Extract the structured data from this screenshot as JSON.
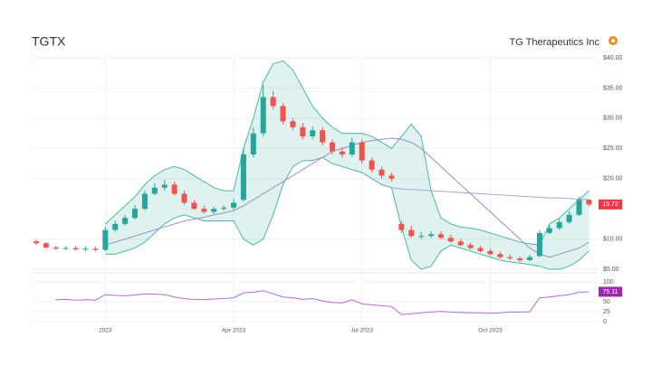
{
  "chart_data": [
    {
      "type": "candlestick",
      "title": "TGTX",
      "subtitle": "TG Therapeutics Inc",
      "categories": [
        null,
        null,
        null,
        null,
        null,
        null,
        null,
        "2023",
        null,
        null,
        null,
        null,
        null,
        null,
        null,
        null,
        null,
        null,
        null,
        null,
        "Apr 2023",
        null,
        null,
        null,
        null,
        null,
        null,
        null,
        null,
        null,
        null,
        null,
        null,
        "Jul 2023",
        null,
        null,
        null,
        null,
        null,
        null,
        null,
        null,
        null,
        null,
        null,
        null,
        "Oct 2023",
        null,
        null,
        null,
        null,
        null,
        null,
        null,
        null,
        null,
        null
      ],
      "open": [
        9.6,
        9.3,
        8.6,
        8.4,
        8.5,
        8.3,
        8.4,
        8.2,
        11.5,
        12.5,
        13.5,
        15.0,
        17.5,
        18.5,
        19.0,
        17.5,
        16.0,
        15.0,
        14.5,
        15.0,
        15.2,
        16.5,
        24.0,
        27.5,
        33.5,
        32.0,
        29.5,
        28.5,
        27.0,
        28.0,
        26.0,
        24.5,
        24.0,
        26.0,
        23.0,
        21.5,
        20.5,
        12.5,
        11.5,
        10.5,
        10.5,
        10.8,
        10.2,
        9.6,
        9.0,
        8.5,
        8.0,
        7.5,
        7.0,
        6.8,
        6.5,
        7.2,
        11.0,
        11.8,
        12.8,
        14.0,
        16.5
      ],
      "high": [
        9.9,
        9.5,
        8.9,
        8.8,
        8.9,
        8.7,
        8.8,
        12.0,
        13.0,
        14.0,
        15.6,
        18.0,
        19.2,
        19.8,
        19.5,
        18.0,
        16.5,
        15.5,
        15.3,
        15.6,
        16.6,
        25.0,
        28.5,
        35.5,
        34.5,
        32.5,
        30.0,
        29.2,
        28.6,
        28.5,
        26.5,
        25.2,
        26.8,
        26.5,
        23.5,
        22.0,
        21.0,
        13.0,
        12.2,
        11.2,
        11.3,
        11.3,
        10.7,
        10.0,
        9.4,
        8.9,
        8.4,
        7.9,
        7.4,
        7.1,
        7.4,
        11.5,
        12.3,
        13.3,
        14.6,
        17.0,
        16.6
      ],
      "low": [
        9.0,
        8.4,
        8.2,
        8.2,
        8.1,
        8.0,
        8.0,
        8.0,
        11.2,
        12.2,
        13.2,
        14.7,
        17.2,
        18.0,
        17.2,
        15.7,
        14.8,
        14.2,
        14.2,
        14.7,
        14.9,
        16.2,
        23.5,
        27.0,
        31.5,
        29.0,
        28.0,
        26.5,
        26.5,
        25.5,
        24.0,
        23.5,
        23.6,
        22.5,
        21.0,
        20.0,
        19.5,
        11.0,
        10.2,
        10.0,
        10.2,
        10.0,
        9.4,
        8.8,
        8.3,
        7.8,
        7.3,
        6.8,
        6.5,
        6.2,
        6.3,
        7.0,
        10.8,
        11.5,
        12.5,
        13.8,
        15.4
      ],
      "close": [
        9.3,
        8.6,
        8.4,
        8.5,
        8.3,
        8.4,
        8.2,
        11.5,
        12.5,
        13.5,
        15.0,
        17.5,
        18.5,
        19.0,
        17.5,
        16.0,
        15.0,
        14.5,
        15.0,
        15.2,
        16.0,
        24.0,
        27.5,
        33.5,
        32.0,
        29.5,
        28.5,
        27.0,
        28.0,
        26.0,
        24.5,
        24.0,
        26.0,
        23.0,
        21.5,
        20.5,
        20.0,
        11.5,
        10.5,
        10.5,
        10.8,
        10.2,
        9.6,
        9.0,
        8.5,
        8.0,
        7.5,
        7.0,
        6.8,
        6.5,
        7.0,
        11.0,
        11.8,
        12.8,
        14.0,
        16.5,
        15.72
      ],
      "up_color": "#26a69a",
      "down_color": "#ef5350",
      "bands": {
        "color": "#4db6ac",
        "upper": [
          null,
          null,
          null,
          null,
          null,
          null,
          null,
          12.5,
          14.0,
          15.5,
          17.0,
          19.0,
          20.5,
          21.5,
          22.0,
          21.5,
          20.5,
          19.5,
          18.5,
          18.0,
          18.0,
          25.0,
          30.0,
          36.0,
          39.0,
          39.5,
          38.0,
          35.0,
          32.0,
          30.0,
          28.5,
          27.5,
          27.5,
          27.5,
          27.0,
          26.0,
          25.0,
          27.0,
          29.0,
          27.0,
          18.0,
          13.5,
          12.5,
          12.0,
          11.8,
          11.5,
          11.0,
          10.5,
          10.0,
          9.5,
          9.2,
          9.0,
          12.5,
          13.5,
          15.0,
          16.5,
          18.0
        ],
        "lower": [
          null,
          null,
          null,
          null,
          null,
          null,
          null,
          7.5,
          7.5,
          8.0,
          8.5,
          9.5,
          11.0,
          12.5,
          13.5,
          14.0,
          13.5,
          13.0,
          13.0,
          13.0,
          13.0,
          10.0,
          9.0,
          10.0,
          14.0,
          19.0,
          22.0,
          23.0,
          23.0,
          23.5,
          22.5,
          22.0,
          21.5,
          21.0,
          20.0,
          19.0,
          18.5,
          12.0,
          6.5,
          5.0,
          5.5,
          8.0,
          9.0,
          8.5,
          8.0,
          7.5,
          7.0,
          6.5,
          6.2,
          6.0,
          5.8,
          5.5,
          5.0,
          5.0,
          5.5,
          6.5,
          8.0
        ]
      },
      "overlays": [
        {
          "color": "#9b8fc4",
          "values": [
            null,
            null,
            null,
            null,
            null,
            null,
            null,
            9.0,
            9.5,
            10.0,
            10.5,
            11.0,
            11.5,
            12.0,
            12.5,
            13.0,
            13.3,
            13.6,
            14.0,
            14.3,
            14.7,
            15.5,
            16.5,
            17.5,
            18.5,
            19.5,
            20.5,
            21.5,
            22.5,
            23.5,
            24.5,
            25.0,
            25.5,
            26.0,
            26.3,
            26.5,
            26.7,
            26.5,
            26.0,
            25.0,
            23.5,
            22.0,
            20.5,
            19.0,
            17.5,
            16.0,
            14.5,
            13.0,
            11.5,
            10.0,
            8.5,
            7.5,
            7.0,
            7.5,
            8.0,
            8.5,
            9.5
          ]
        },
        {
          "color": "#a9a6d6",
          "values": [
            null,
            null,
            null,
            null,
            null,
            null,
            null,
            null,
            null,
            null,
            null,
            null,
            null,
            null,
            null,
            null,
            null,
            null,
            null,
            null,
            null,
            null,
            null,
            null,
            null,
            null,
            null,
            null,
            null,
            null,
            null,
            null,
            null,
            null,
            null,
            null,
            18.5,
            18.3,
            18.2,
            18.1,
            18.0,
            17.9,
            17.8,
            17.7,
            17.6,
            17.5,
            17.4,
            17.3,
            17.2,
            17.1,
            17.0,
            16.9,
            16.8,
            16.8,
            16.7,
            16.6,
            16.5
          ]
        }
      ],
      "ylim": [
        5,
        40
      ],
      "yticks": [
        {
          "value": 5,
          "label": "$5.00"
        },
        {
          "value": 10,
          "label": "$10.00"
        },
        {
          "value": 20,
          "label": "$20.00"
        },
        {
          "value": 25,
          "label": "$25.00"
        },
        {
          "value": 30,
          "label": "$30.00"
        },
        {
          "value": 35,
          "label": "$35.00"
        },
        {
          "value": 40,
          "label": "$40.00"
        }
      ],
      "last_color": "#f23645",
      "grid": true
    },
    {
      "type": "line",
      "color": "#b36bd1",
      "values": [
        null,
        null,
        55,
        56,
        54,
        55,
        54,
        68,
        66,
        65,
        67,
        70,
        69,
        68,
        62,
        58,
        56,
        55,
        57,
        58,
        60,
        72,
        74,
        78,
        70,
        62,
        60,
        56,
        58,
        52,
        48,
        47,
        55,
        45,
        42,
        40,
        38,
        18,
        20,
        22,
        24,
        26,
        24,
        23,
        22,
        22,
        21,
        22,
        24,
        24,
        25,
        60,
        62,
        65,
        68,
        74,
        75.11
      ],
      "ylim": [
        0,
        100
      ],
      "yticks": [
        0,
        25,
        50,
        100
      ],
      "last_color": "#9c27b0"
    }
  ]
}
